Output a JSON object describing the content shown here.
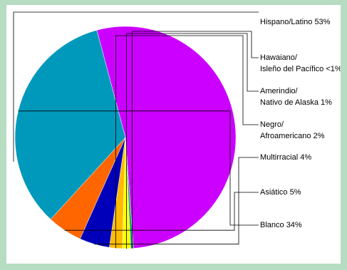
{
  "chart_data": {
    "type": "pie",
    "title": "",
    "slices": [
      {
        "label_lines": [
          "Hispano/Latino 53%"
        ],
        "value": 53,
        "color": "#cc00ff"
      },
      {
        "label_lines": [
          "Hawaiano/",
          "Isleño del Pacífico <1%"
        ],
        "value": 0.4,
        "color": "#00aa66"
      },
      {
        "label_lines": [
          "Amerindio/",
          "Nativo de Alaska 1%"
        ],
        "value": 1.2,
        "color": "#ffff00"
      },
      {
        "label_lines": [
          "Negro/",
          "Afroamericano 2%"
        ],
        "value": 1.9,
        "color": "#ffbb00"
      },
      {
        "label_lines": [
          "Multirracial 4%"
        ],
        "value": 4.4,
        "color": "#0000bb"
      },
      {
        "label_lines": [
          "Asiático 5%"
        ],
        "value": 5.1,
        "color": "#ff6600"
      },
      {
        "label_lines": [
          "Blanco 34%"
        ],
        "value": 34,
        "color": "#0099bb"
      }
    ],
    "legend": "none"
  }
}
